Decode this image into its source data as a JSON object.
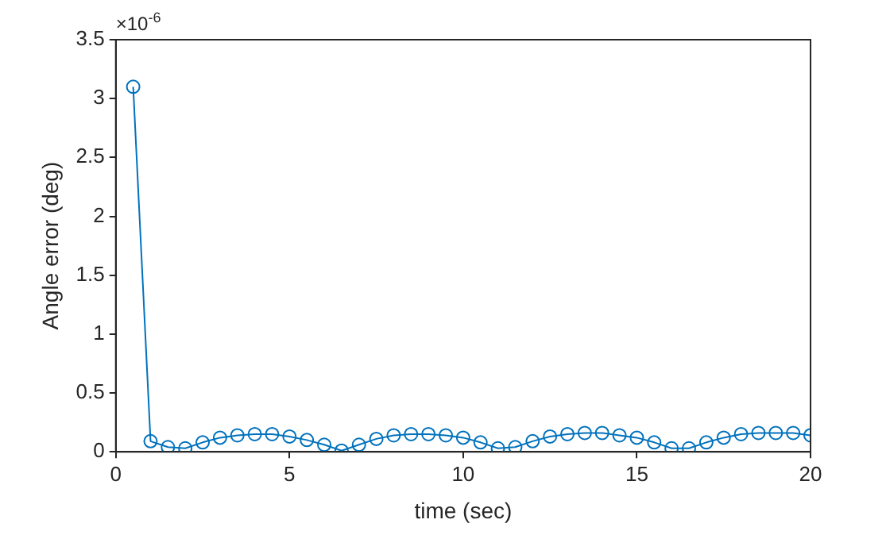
{
  "chart_data": {
    "type": "line",
    "xlabel": "time (sec)",
    "ylabel": "Angle error (deg)",
    "annotations": [
      "×10$^{-6}$"
    ],
    "x": [
      0.5,
      1,
      1.5,
      2,
      2.5,
      3,
      3.5,
      4,
      4.5,
      5,
      5.5,
      6,
      6.5,
      7,
      7.5,
      8,
      8.5,
      9,
      9.5,
      10,
      10.5,
      11,
      11.5,
      12,
      12.5,
      13,
      13.5,
      14,
      14.5,
      15,
      15.5,
      16,
      16.5,
      17,
      17.5,
      18,
      18.5,
      19,
      19.5,
      20
    ],
    "series": [
      {
        "color": "#0072bd",
        "values": [
          3.1,
          0.09,
          0.04,
          0.03,
          0.08,
          0.12,
          0.14,
          0.15,
          0.15,
          0.13,
          0.1,
          0.06,
          0.01,
          0.06,
          0.11,
          0.14,
          0.15,
          0.15,
          0.14,
          0.12,
          0.08,
          0.03,
          0.04,
          0.09,
          0.13,
          0.15,
          0.16,
          0.16,
          0.14,
          0.12,
          0.08,
          0.03,
          0.03,
          0.08,
          0.12,
          0.15,
          0.16,
          0.16,
          0.16,
          0.14
        ]
      }
    ],
    "xlim": [
      0,
      20
    ],
    "xticks": [
      0,
      5,
      10,
      15,
      20
    ],
    "ylim": [
      0,
      3.5
    ],
    "yticks": [
      0,
      0.5,
      1,
      1.5,
      2,
      2.5,
      3,
      3.5
    ],
    "grid": false,
    "legend": false,
    "marker": "circle",
    "line_style": "solid"
  }
}
